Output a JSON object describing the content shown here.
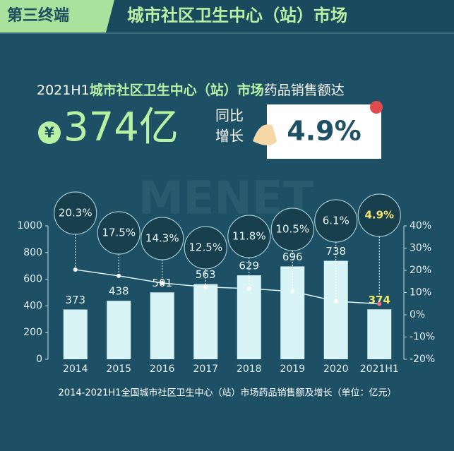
{
  "header": {
    "tag": "第三终端",
    "title": "城市社区卫生中心（站）市场"
  },
  "headline": {
    "prefix": "2021H1",
    "highlight": "城市社区卫生中心（站）市场",
    "suffix": "药品销售额达",
    "currency": "¥",
    "amount": "374亿",
    "yoy_label": [
      "同比",
      "增长"
    ],
    "yoy_value": "4.9%"
  },
  "watermark": "MENET",
  "chart_data": {
    "type": "bar",
    "caption": "2014-2021H1全国城市社区卫生中心（站）市场药品销售额及增长（单位：亿元）",
    "categories": [
      "2014",
      "2015",
      "2016",
      "2017",
      "2018",
      "2019",
      "2020",
      "2021H1"
    ],
    "series": [
      {
        "type": "bar",
        "color": "#d8f4f7",
        "values": [
          373,
          438,
          501,
          563,
          629,
          696,
          738,
          374
        ]
      },
      {
        "type": "line",
        "axis": "y2",
        "color": "#d8f4f7",
        "values": [
          20.3,
          17.5,
          14.3,
          12.5,
          11.8,
          10.5,
          6.1,
          4.9
        ],
        "value_labels": [
          "20.3%",
          "17.5%",
          "14.3%",
          "12.5%",
          "11.8%",
          "10.5%",
          "6.1%",
          "4.9%"
        ]
      }
    ],
    "ylim": [
      0,
      1000
    ],
    "yticks": [
      0,
      200,
      400,
      600,
      800,
      1000
    ],
    "y2lim": [
      -20,
      40
    ],
    "y2ticks": [
      {
        "value": -20,
        "label": "-20%"
      },
      {
        "value": -10,
        "label": "-10%"
      },
      {
        "value": 0,
        "label": "0%"
      },
      {
        "value": 10,
        "label": "10%"
      },
      {
        "value": 20,
        "label": "20%"
      },
      {
        "value": 30,
        "label": "30%"
      },
      {
        "value": 40,
        "label": "40%"
      }
    ]
  }
}
